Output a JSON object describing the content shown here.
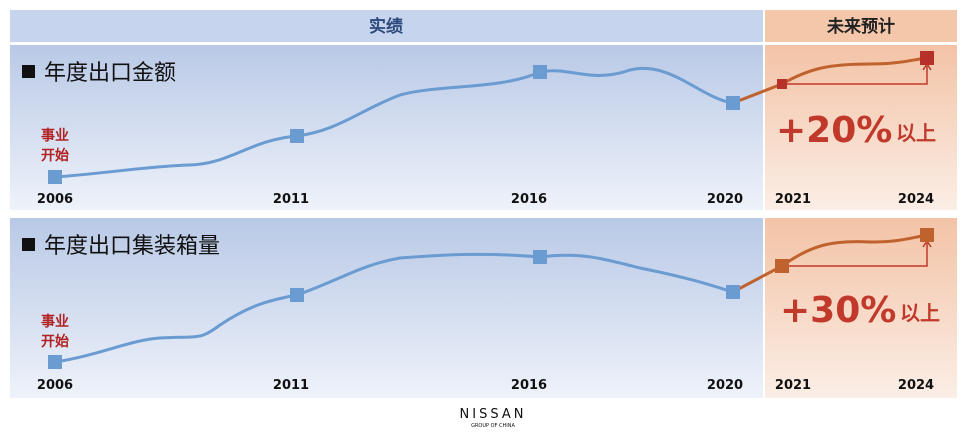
{
  "header": {
    "actual": "实绩",
    "forecast": "未来预计"
  },
  "panels": [
    {
      "title": "年度出口金额",
      "start_label": [
        "事业",
        "开始"
      ],
      "years": [
        "2006",
        "2011",
        "2016",
        "2020",
        "2021",
        "2024"
      ],
      "growth": "+20%",
      "growth_suffix": "以上"
    },
    {
      "title": "年度出口集装箱量",
      "start_label": [
        "事业",
        "开始"
      ],
      "years": [
        "2006",
        "2011",
        "2016",
        "2020",
        "2021",
        "2024"
      ],
      "growth": "+30%",
      "growth_suffix": "以上"
    }
  ],
  "logo": {
    "brand": "NISSAN",
    "sub": "GROUP OF CHINA"
  }
}
